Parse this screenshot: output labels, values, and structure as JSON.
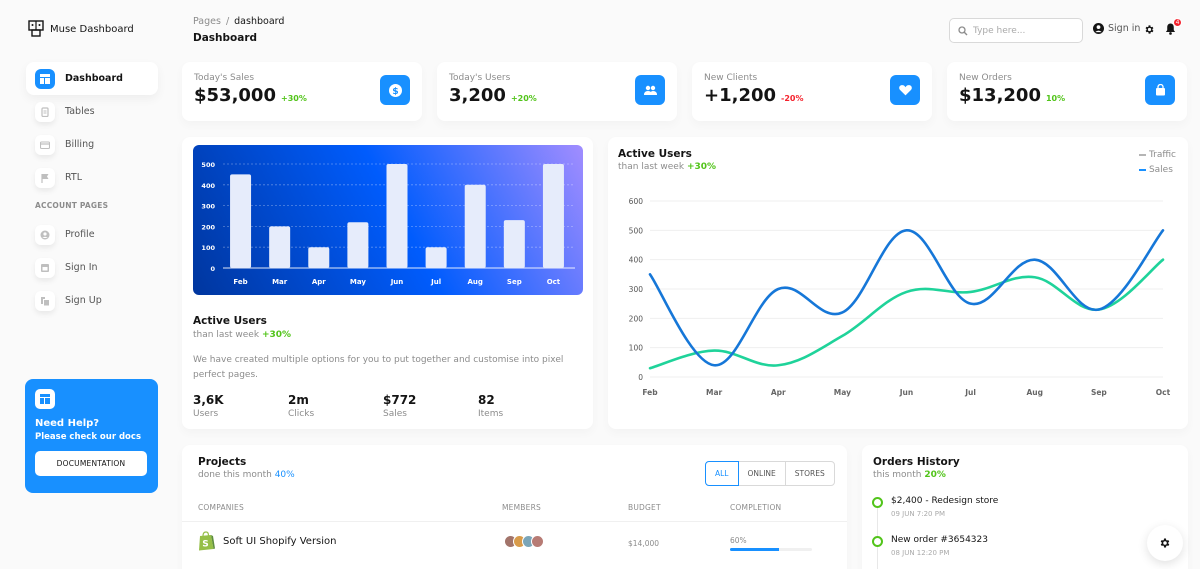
{
  "brand": {
    "name": "Muse Dashboard"
  },
  "sidebar": {
    "items": [
      {
        "label": "Dashboard",
        "icon": "dashboard-icon",
        "active": true
      },
      {
        "label": "Tables",
        "icon": "tables-icon"
      },
      {
        "label": "Billing",
        "icon": "billing-icon"
      },
      {
        "label": "RTL",
        "icon": "flag-icon"
      }
    ],
    "section_title": "ACCOUNT PAGES",
    "account_items": [
      {
        "label": "Profile",
        "icon": "profile-icon"
      },
      {
        "label": "Sign In",
        "icon": "sign-in-icon"
      },
      {
        "label": "Sign Up",
        "icon": "sign-up-icon"
      }
    ],
    "help": {
      "title": "Need Help?",
      "subtitle": "Please check our docs",
      "button": "DOCUMENTATION"
    }
  },
  "header": {
    "breadcrumb": [
      "Pages",
      "dashboard"
    ],
    "breadcrumb_sep": "/",
    "title": "Dashboard",
    "search_placeholder": "Type here...",
    "sign_in": "Sign in",
    "notification_count": "4"
  },
  "stats": [
    {
      "label": "Today's Sales",
      "value": "$53,000",
      "delta": "+30%",
      "delta_color": "#52c41a",
      "icon": "dollar-icon"
    },
    {
      "label": "Today's Users",
      "value": "3,200",
      "delta": "+20%",
      "delta_color": "#52c41a",
      "icon": "users-icon"
    },
    {
      "label": "New Clients",
      "value": "+1,200",
      "delta": "-20%",
      "delta_color": "#f5222d",
      "icon": "heart-icon"
    },
    {
      "label": "New Orders",
      "value": "$13,200",
      "delta": "10%",
      "delta_color": "#52c41a",
      "icon": "shopping-bag-icon"
    }
  ],
  "active_users_bar": {
    "title": "Active Users",
    "sub_prefix": "than last week",
    "sub_delta": "+30%",
    "description": "We have created multiple options for you to put together and customise into pixel perfect pages.",
    "mini_stats": [
      {
        "value": "3,6K",
        "label": "Users"
      },
      {
        "value": "2m",
        "label": "Clicks"
      },
      {
        "value": "$772",
        "label": "Sales"
      },
      {
        "value": "82",
        "label": "Items"
      }
    ]
  },
  "active_users_line": {
    "title": "Active Users",
    "sub_prefix": "than last week",
    "sub_delta": "+30%",
    "legend": [
      {
        "name": "Traffic",
        "color": "#b5b5b5"
      },
      {
        "name": "Sales",
        "color": "#1890ff"
      }
    ]
  },
  "chart_data": [
    {
      "type": "bar",
      "title": "",
      "categories": [
        "Feb",
        "Mar",
        "Apr",
        "May",
        "Jun",
        "Jul",
        "Aug",
        "Sep",
        "Oct"
      ],
      "values": [
        450,
        200,
        100,
        220,
        500,
        100,
        400,
        230,
        500
      ],
      "yticks": [
        0,
        100,
        200,
        300,
        400,
        500
      ],
      "ylim": [
        0,
        500
      ],
      "grid": true,
      "bar_color": "#e6ecfb"
    },
    {
      "type": "line",
      "title": "Active Users",
      "categories": [
        "Feb",
        "Mar",
        "Apr",
        "May",
        "Jun",
        "Jul",
        "Aug",
        "Sep",
        "Oct"
      ],
      "series": [
        {
          "name": "Sales",
          "color": "#1677d8",
          "values": [
            350,
            40,
            300,
            220,
            500,
            250,
            400,
            230,
            500
          ]
        },
        {
          "name": "Traffic",
          "color": "#1fd39a",
          "values": [
            30,
            90,
            40,
            140,
            290,
            290,
            340,
            230,
            400
          ]
        }
      ],
      "yticks": [
        0,
        100,
        200,
        300,
        400,
        500,
        600
      ],
      "ylim": [
        0,
        600
      ],
      "grid": true,
      "legend_position": "top-right"
    }
  ],
  "projects": {
    "title": "Projects",
    "sub_prefix": "done this month",
    "sub_delta": "40%",
    "filters": [
      "ALL",
      "ONLINE",
      "STORES"
    ],
    "active_filter": "ALL",
    "columns": [
      "COMPANIES",
      "MEMBERS",
      "BUDGET",
      "COMPLETION"
    ],
    "rows": [
      {
        "company": "Soft UI Shopify Version",
        "budget": "$14,000",
        "completion": "60%",
        "completion_value": 60
      }
    ]
  },
  "orders": {
    "title": "Orders History",
    "sub_prefix": "this month",
    "sub_delta": "20%",
    "items": [
      {
        "title": "$2,400 - Redesign store",
        "time": "09 JUN 7:20 PM"
      },
      {
        "title": "New order #3654323",
        "time": "08 JUN 12:20 PM"
      }
    ]
  }
}
